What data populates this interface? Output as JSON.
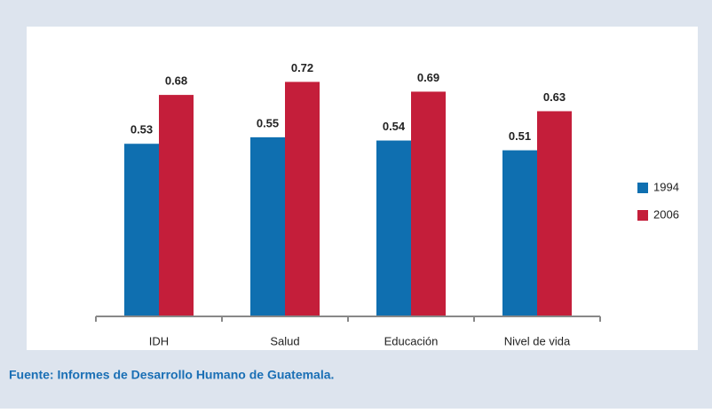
{
  "chart_data": {
    "type": "bar",
    "categories": [
      "IDH",
      "Salud",
      "Educación",
      "Nivel de vida"
    ],
    "series": [
      {
        "name": "1994",
        "color": "#0f6fb0",
        "values": [
          0.53,
          0.55,
          0.54,
          0.51
        ]
      },
      {
        "name": "2006",
        "color": "#c41e3a",
        "values": [
          0.68,
          0.72,
          0.69,
          0.63
        ]
      }
    ],
    "ylim": [
      0,
      0.8
    ],
    "legend": "right",
    "source": "Fuente: Informes de Desarrollo Humano de Guatemala."
  }
}
